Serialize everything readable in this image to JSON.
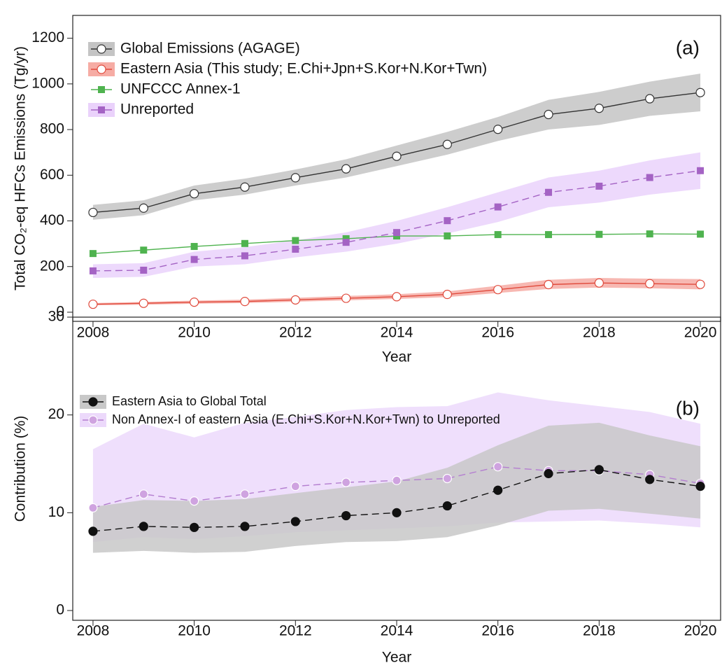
{
  "chart_data": [
    {
      "type": "line",
      "label": "(a)",
      "xlabel": "Year",
      "ylabel": "Total CO₂-eq HFCs Emissions (Tg/yr)",
      "x": [
        2008,
        2009,
        2010,
        2011,
        2012,
        2013,
        2014,
        2015,
        2016,
        2017,
        2018,
        2019,
        2020
      ],
      "xlim": [
        2007.6,
        2020.4
      ],
      "xticks": [
        2008,
        2010,
        2012,
        2014,
        2016,
        2018,
        2020
      ],
      "ylim": [
        -40,
        1300
      ],
      "yticks": [
        0,
        200,
        400,
        600,
        800,
        1000,
        1200
      ],
      "series": [
        {
          "name": "Global Emissions (AGAGE)",
          "color": "#333333",
          "band_color": "#c4c4c4",
          "marker": "circle-open",
          "dash": false,
          "values": [
            437,
            456,
            519,
            548,
            589,
            628,
            683,
            735,
            801,
            866,
            893,
            935,
            962
          ],
          "lower": [
            405,
            425,
            490,
            515,
            555,
            590,
            640,
            690,
            750,
            800,
            820,
            860,
            880
          ],
          "upper": [
            470,
            490,
            555,
            585,
            625,
            670,
            730,
            790,
            855,
            930,
            965,
            1010,
            1045
          ]
        },
        {
          "name": "Eastern Asia (This study; E.Chi+Jpn+S.Kor+N.Kor+Twn)",
          "color": "#e04a3c",
          "band_color": "#f6aca4",
          "marker": "circle-open",
          "dash": false,
          "values": [
            35,
            39,
            44,
            47,
            54,
            61,
            68,
            78,
            99,
            121,
            128,
            125,
            122
          ],
          "lower": [
            30,
            33,
            37,
            40,
            46,
            52,
            58,
            66,
            84,
            102,
            108,
            105,
            100
          ],
          "upper": [
            40,
            45,
            51,
            55,
            63,
            71,
            79,
            91,
            116,
            142,
            150,
            147,
            145
          ]
        },
        {
          "name": "UNFCCC Annex-1",
          "color": "#4fb34f",
          "marker": "square",
          "dash": false,
          "values": [
            257,
            272,
            288,
            301,
            314,
            322,
            334,
            334,
            340,
            340,
            341,
            343,
            342
          ]
        },
        {
          "name": "Unreported",
          "color": "#a463c4",
          "band_color": "#ead2fb",
          "marker": "square",
          "dash": true,
          "values": [
            181,
            184,
            231,
            247,
            276,
            306,
            349,
            401,
            461,
            525,
            552,
            590,
            620
          ],
          "lower": [
            150,
            155,
            200,
            210,
            240,
            265,
            300,
            345,
            395,
            460,
            480,
            515,
            540
          ],
          "upper": [
            210,
            215,
            265,
            285,
            315,
            350,
            400,
            460,
            525,
            590,
            620,
            665,
            700
          ]
        }
      ]
    },
    {
      "type": "line",
      "label": "(b)",
      "xlabel": "Year",
      "ylabel": "Contribution (%)",
      "x": [
        2008,
        2009,
        2010,
        2011,
        2012,
        2013,
        2014,
        2015,
        2016,
        2017,
        2018,
        2019,
        2020
      ],
      "xlim": [
        2007.6,
        2020.4
      ],
      "xticks": [
        2008,
        2010,
        2012,
        2014,
        2016,
        2018,
        2020
      ],
      "ylim": [
        -1,
        30
      ],
      "yticks": [
        0,
        10,
        20,
        30
      ],
      "series": [
        {
          "name": "Non Annex-I of eastern Asia (E.Chi+S.Kor+N.Kor+Twn) to Unreported",
          "color": "#b47ed0",
          "band_color": "#ecd9fb",
          "marker": "circle-light",
          "dash": true,
          "values": [
            10.5,
            11.9,
            11.2,
            11.9,
            12.7,
            13.1,
            13.3,
            13.5,
            14.7,
            14.3,
            14.3,
            13.9,
            13.0
          ],
          "lower": [
            7.0,
            7.5,
            7.3,
            7.6,
            8.0,
            8.2,
            8.4,
            8.6,
            9.0,
            9.1,
            9.2,
            8.9,
            8.5
          ],
          "upper": [
            16.5,
            19.1,
            17.7,
            19.2,
            19.8,
            20.5,
            20.8,
            20.9,
            22.3,
            21.5,
            20.9,
            20.3,
            19.1
          ]
        },
        {
          "name": "Eastern Asia to Global Total",
          "color": "#111111",
          "band_color": "#c8c8c8",
          "marker": "circle-filled",
          "dash": true,
          "values": [
            8.1,
            8.6,
            8.5,
            8.6,
            9.1,
            9.7,
            10.0,
            10.7,
            12.3,
            14.0,
            14.4,
            13.4,
            12.7
          ],
          "lower": [
            5.9,
            6.1,
            5.9,
            6.0,
            6.6,
            7.0,
            7.1,
            7.5,
            8.7,
            10.2,
            10.4,
            9.9,
            9.4
          ],
          "upper": [
            10.6,
            11.3,
            11.2,
            11.4,
            12.0,
            12.6,
            13.2,
            14.6,
            16.9,
            18.9,
            19.2,
            17.9,
            16.8
          ]
        }
      ]
    }
  ]
}
